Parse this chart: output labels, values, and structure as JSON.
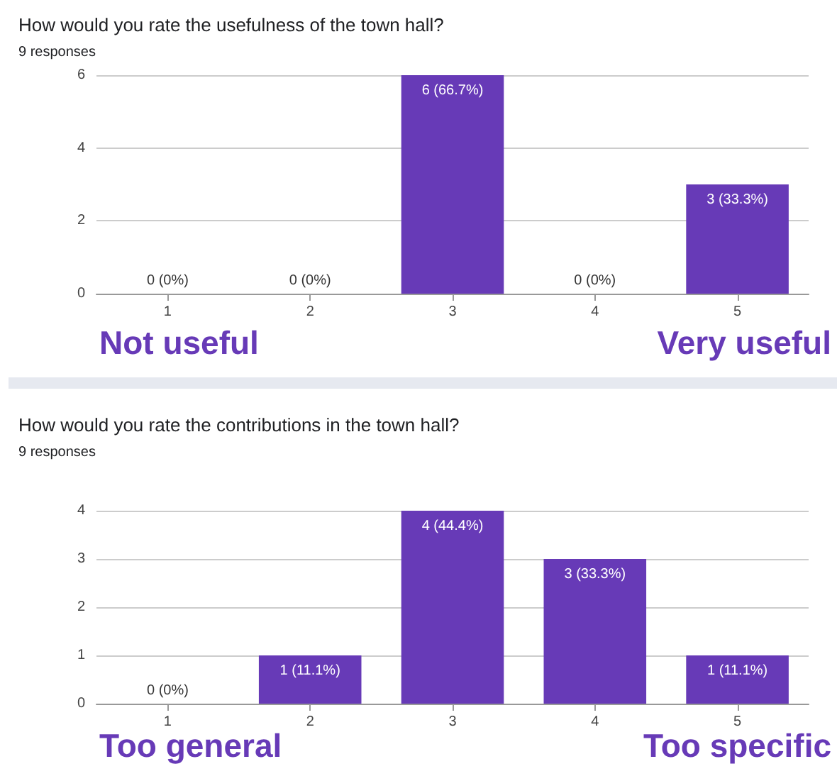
{
  "chart_data": [
    {
      "type": "bar",
      "title": "How would you rate the usefulness of the town hall?",
      "subtitle": "9 responses",
      "categories": [
        "1",
        "2",
        "3",
        "4",
        "5"
      ],
      "values": [
        0,
        0,
        6,
        0,
        3
      ],
      "value_labels": [
        "0 (0%)",
        "0 (0%)",
        "6 (66.7%)",
        "0 (0%)",
        "3 (33.3%)"
      ],
      "color": "#673ab7",
      "ylim": [
        0,
        6
      ],
      "yticks": [
        0,
        2,
        4,
        6
      ],
      "grid": "y",
      "annotations": [
        "Not useful",
        "Very useful"
      ]
    },
    {
      "type": "bar",
      "title": "How would you rate the contributions in the town hall?",
      "subtitle": "9 responses",
      "categories": [
        "1",
        "2",
        "3",
        "4",
        "5"
      ],
      "values": [
        0,
        1,
        4,
        3,
        1
      ],
      "value_labels": [
        "0 (0%)",
        "1 (11.1%)",
        "4 (44.4%)",
        "3 (33.3%)",
        "1 (11.1%)"
      ],
      "color": "#673ab7",
      "ylim": [
        0,
        4
      ],
      "yticks": [
        0,
        1,
        2,
        3,
        4
      ],
      "grid": "y",
      "annotations": [
        "Too general",
        "Too specific"
      ]
    }
  ]
}
